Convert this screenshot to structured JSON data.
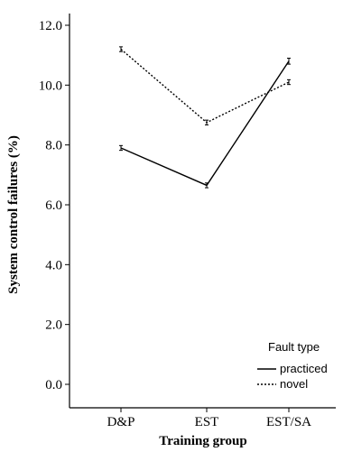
{
  "chart_data": {
    "type": "line",
    "title": "",
    "xlabel": "Training group",
    "ylabel": "System control failures (%)",
    "categories": [
      "D&P",
      "EST",
      "EST/SA"
    ],
    "ylim": [
      0,
      12
    ],
    "yticks": [
      0,
      2,
      4,
      6,
      8,
      10,
      12
    ],
    "ytick_labels": [
      "0.0",
      "2.0",
      "4.0",
      "6.0",
      "8.0",
      "10.0",
      "12.0"
    ],
    "series": [
      {
        "name": "practiced",
        "style": "solid",
        "values": [
          7.9,
          6.65,
          10.8
        ],
        "error": [
          0.08,
          0.08,
          0.1
        ]
      },
      {
        "name": "novel",
        "style": "dotted",
        "values": [
          11.2,
          8.75,
          10.1
        ],
        "error": [
          0.08,
          0.08,
          0.08
        ]
      }
    ],
    "legend": {
      "title": "Fault type",
      "position": "bottom-right"
    },
    "grid": false
  }
}
